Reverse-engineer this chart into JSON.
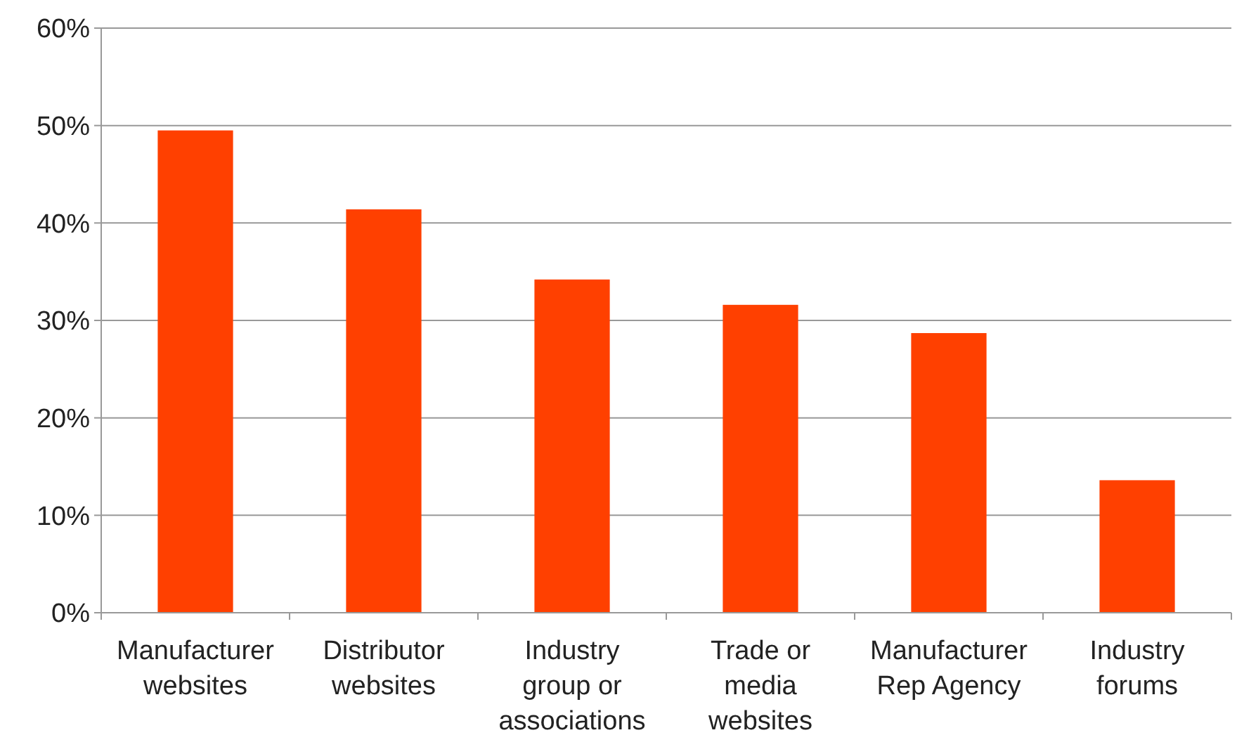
{
  "chart_data": {
    "type": "bar",
    "categories": [
      "Manufacturer websites",
      "Distributor websites",
      "Industry group or associations",
      "Trade or media websites",
      "Manufacturer Rep Agency",
      "Industry forums"
    ],
    "values": [
      49.5,
      41.4,
      34.2,
      31.6,
      28.7,
      13.6
    ],
    "color": "#ff4000",
    "ylim": [
      0,
      60
    ],
    "yticks": [
      {
        "value": 0,
        "label": "0%"
      },
      {
        "value": 10,
        "label": "10%"
      },
      {
        "value": 20,
        "label": "20%"
      },
      {
        "value": 30,
        "label": "30%"
      },
      {
        "value": 40,
        "label": "40%"
      },
      {
        "value": 50,
        "label": "50%"
      },
      {
        "value": 60,
        "label": "60%"
      }
    ],
    "grid": "y"
  }
}
